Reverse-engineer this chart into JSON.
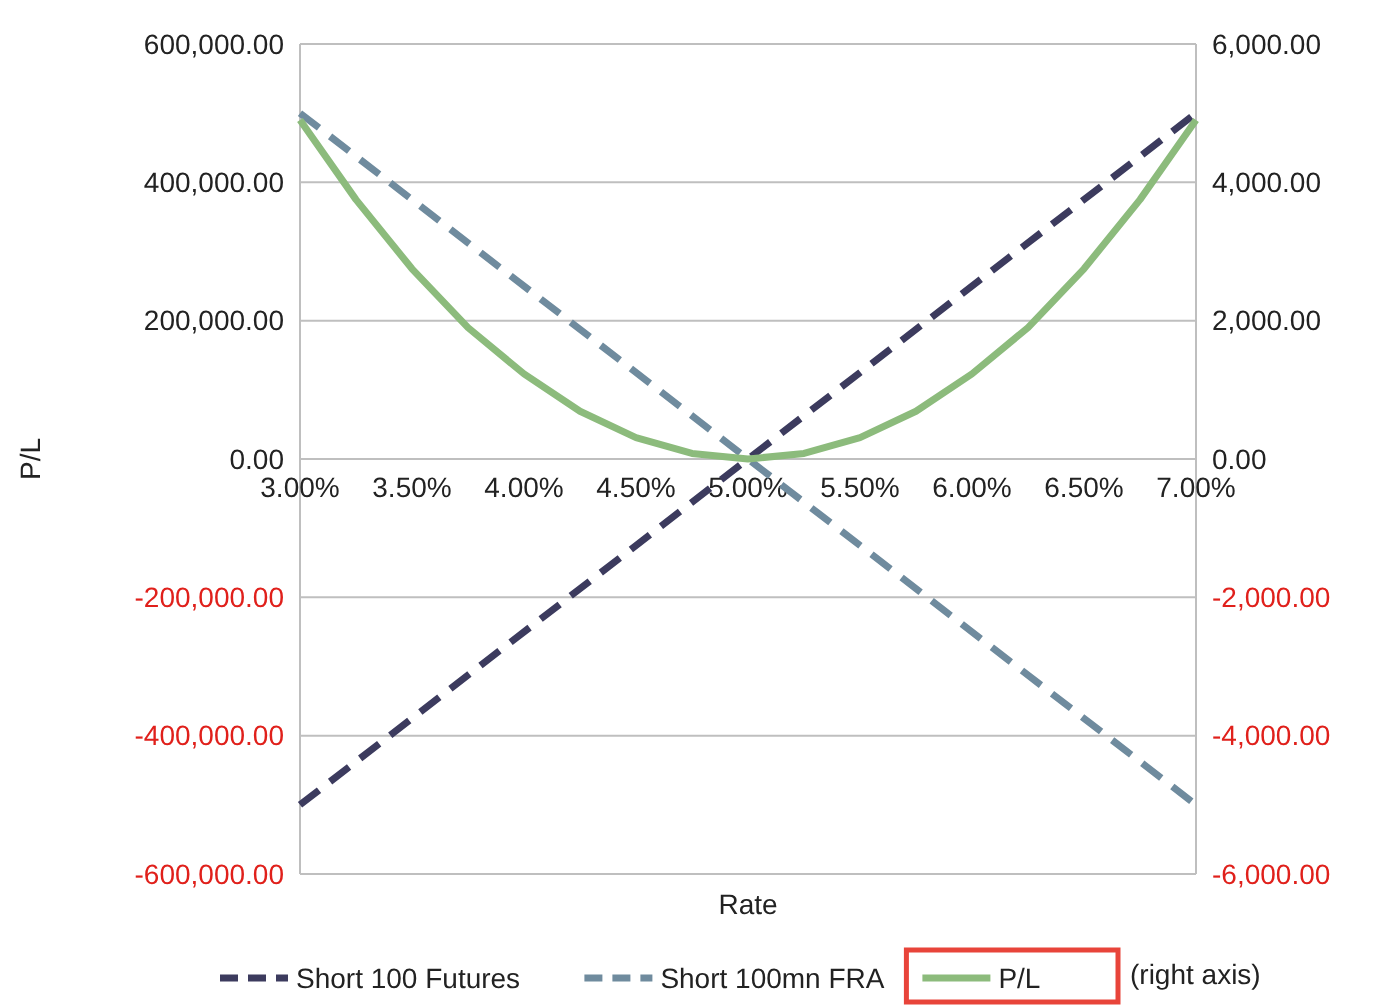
{
  "chart_data": {
    "type": "line",
    "xlabel": "Rate",
    "ylabel": "P/L",
    "x": [
      3,
      3.25,
      3.5,
      3.75,
      4,
      4.25,
      4.5,
      4.75,
      5,
      5.25,
      5.5,
      5.75,
      6,
      6.25,
      6.5,
      6.75,
      7
    ],
    "xlim": [
      3,
      7
    ],
    "xticks": [
      {
        "value": 3,
        "label": "3.00%"
      },
      {
        "value": 3.5,
        "label": "3.50%"
      },
      {
        "value": 4,
        "label": "4.00%"
      },
      {
        "value": 4.5,
        "label": "4.50%"
      },
      {
        "value": 5,
        "label": "5.00%"
      },
      {
        "value": 5.5,
        "label": "5.50%"
      },
      {
        "value": 6,
        "label": "6.00%"
      },
      {
        "value": 6.5,
        "label": "6.50%"
      },
      {
        "value": 7,
        "label": "7.00%"
      }
    ],
    "ylim": [
      -600000,
      600000
    ],
    "yticks": [
      {
        "value": -600000,
        "label": "-600,000.00"
      },
      {
        "value": -400000,
        "label": "-400,000.00"
      },
      {
        "value": -200000,
        "label": "-200,000.00"
      },
      {
        "value": 0,
        "label": "0.00"
      },
      {
        "value": 200000,
        "label": "200,000.00"
      },
      {
        "value": 400000,
        "label": "400,000.00"
      },
      {
        "value": 600000,
        "label": "600,000.00"
      }
    ],
    "y2lim": [
      -6000,
      6000
    ],
    "y2ticks": [
      {
        "value": -6000,
        "label": "-6,000.00"
      },
      {
        "value": -4000,
        "label": "-4,000.00"
      },
      {
        "value": -2000,
        "label": "-2,000.00"
      },
      {
        "value": 0,
        "label": "0.00"
      },
      {
        "value": 2000,
        "label": "2,000.00"
      },
      {
        "value": 4000,
        "label": "4,000.00"
      },
      {
        "value": 6000,
        "label": "6,000.00"
      }
    ],
    "grid": "y",
    "legend": "bottom",
    "annotations": [
      "(right axis)"
    ],
    "series": [
      {
        "name": "Short 100 Futures",
        "color": "#3c3b5e",
        "line_style": "dashed",
        "x": [
          3,
          5,
          7
        ],
        "values": [
          -500000,
          0,
          500000
        ]
      },
      {
        "name": "Short 100mn FRA",
        "color": "#6f8b9e",
        "line_style": "dashed",
        "x": [
          3,
          5,
          7
        ],
        "values": [
          500000,
          0,
          -500000
        ]
      },
      {
        "name": "P/L",
        "color": "#8cbb7c",
        "line_style": "solid",
        "axis": "y2",
        "values": [
          4900,
          3750,
          2750,
          1900,
          1230,
          690,
          310,
          80,
          0,
          80,
          310,
          690,
          1230,
          1900,
          2750,
          3750,
          4900
        ]
      }
    ]
  }
}
